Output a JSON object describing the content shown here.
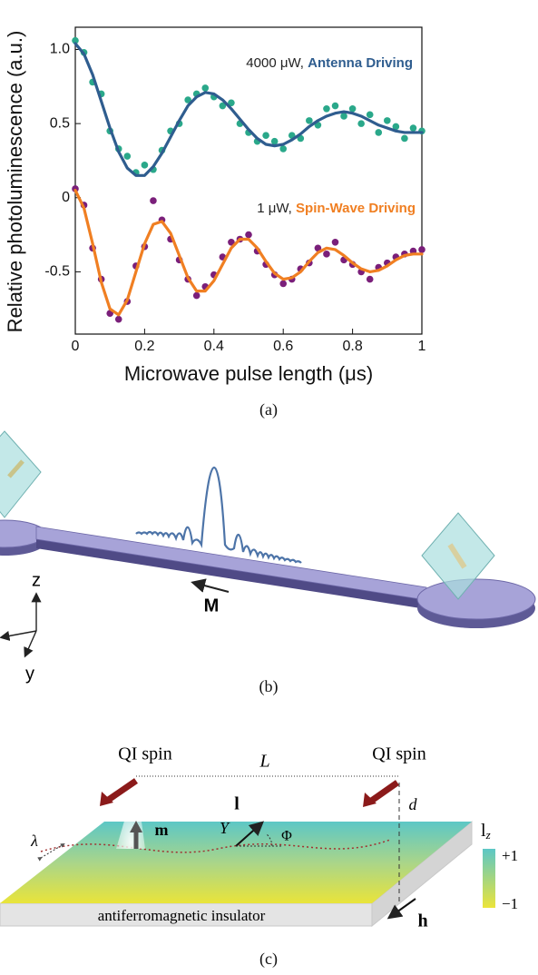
{
  "chart_data": {
    "type": "line",
    "xlabel": "Microwave pulse length (μs)",
    "ylabel": "Relative photoluminescence (a.u.)",
    "xlim": [
      0,
      1
    ],
    "ylim": [
      -0.92,
      1.15
    ],
    "xticks": [
      0,
      0.2,
      0.4,
      0.6,
      0.8,
      1
    ],
    "yticks": [
      {
        "value": 1,
        "label": "1.0"
      },
      0.5,
      0,
      -0.5
    ],
    "x": [
      0,
      0.025,
      0.05,
      0.075,
      0.1,
      0.125,
      0.15,
      0.175,
      0.2,
      0.225,
      0.25,
      0.275,
      0.3,
      0.325,
      0.35,
      0.375,
      0.4,
      0.425,
      0.45,
      0.475,
      0.5,
      0.525,
      0.55,
      0.575,
      0.6,
      0.625,
      0.65,
      0.675,
      0.7,
      0.725,
      0.75,
      0.775,
      0.8,
      0.825,
      0.85,
      0.875,
      0.9,
      0.925,
      0.95,
      0.975,
      1
    ],
    "series": [
      {
        "mark": "dots",
        "color": "#2aa88a",
        "values": [
          1.06,
          0.98,
          0.78,
          0.7,
          0.45,
          0.33,
          0.28,
          0.17,
          0.22,
          0.19,
          0.32,
          0.45,
          0.5,
          0.66,
          0.7,
          0.74,
          0.68,
          0.62,
          0.64,
          0.5,
          0.44,
          0.38,
          0.42,
          0.38,
          0.33,
          0.42,
          0.4,
          0.52,
          0.49,
          0.6,
          0.62,
          0.55,
          0.6,
          0.5,
          0.56,
          0.44,
          0.52,
          0.48,
          0.4,
          0.47,
          0.45
        ]
      },
      {
        "mark": "line",
        "color": "#2f5d8f",
        "values": [
          1.04,
          0.97,
          0.83,
          0.65,
          0.47,
          0.31,
          0.2,
          0.15,
          0.15,
          0.21,
          0.3,
          0.41,
          0.52,
          0.62,
          0.68,
          0.71,
          0.7,
          0.66,
          0.6,
          0.53,
          0.46,
          0.4,
          0.36,
          0.35,
          0.36,
          0.39,
          0.43,
          0.48,
          0.52,
          0.55,
          0.57,
          0.58,
          0.57,
          0.55,
          0.52,
          0.49,
          0.47,
          0.45,
          0.44,
          0.44,
          0.44
        ]
      },
      {
        "mark": "dots",
        "color": "#7a1f7a",
        "values": [
          0.06,
          -0.05,
          -0.34,
          -0.55,
          -0.78,
          -0.82,
          -0.7,
          -0.46,
          -0.33,
          -0.02,
          -0.15,
          -0.28,
          -0.42,
          -0.55,
          -0.66,
          -0.6,
          -0.52,
          -0.4,
          -0.3,
          -0.28,
          -0.25,
          -0.36,
          -0.45,
          -0.52,
          -0.58,
          -0.55,
          -0.48,
          -0.44,
          -0.34,
          -0.38,
          -0.3,
          -0.42,
          -0.45,
          -0.5,
          -0.55,
          -0.47,
          -0.44,
          -0.4,
          -0.38,
          -0.36,
          -0.35
        ]
      },
      {
        "mark": "line",
        "color": "#f07f22",
        "values": [
          0.05,
          -0.07,
          -0.31,
          -0.57,
          -0.75,
          -0.79,
          -0.69,
          -0.5,
          -0.31,
          -0.18,
          -0.16,
          -0.24,
          -0.39,
          -0.54,
          -0.63,
          -0.63,
          -0.56,
          -0.45,
          -0.34,
          -0.28,
          -0.28,
          -0.34,
          -0.43,
          -0.51,
          -0.55,
          -0.54,
          -0.5,
          -0.43,
          -0.37,
          -0.34,
          -0.35,
          -0.39,
          -0.44,
          -0.48,
          -0.5,
          -0.49,
          -0.46,
          -0.42,
          -0.39,
          -0.38,
          -0.38
        ]
      }
    ],
    "annotations": [
      {
        "text": "4000 μW,",
        "emphasis": "Antenna Driving"
      },
      {
        "text": "1 μW,",
        "emphasis": "Spin-Wave Driving"
      }
    ]
  },
  "panel_a": {
    "label": "(a)"
  },
  "panel_b": {
    "label": "(b)",
    "axes": [
      "z",
      "y"
    ],
    "magnetization": "M"
  },
  "panel_c": {
    "label": "(c)",
    "spins": [
      "QI spin",
      "QI spin"
    ],
    "distance": "L",
    "height": "d",
    "moment": "m",
    "order": "l",
    "angle_y": "Y",
    "angle_phi": "Φ",
    "wavelength": "λ",
    "material": "antiferromagnetic insulator",
    "field": "h",
    "colorbar": {
      "title": "l",
      "subscript": "z",
      "ticks": [
        "+1",
        "−1"
      ]
    }
  }
}
